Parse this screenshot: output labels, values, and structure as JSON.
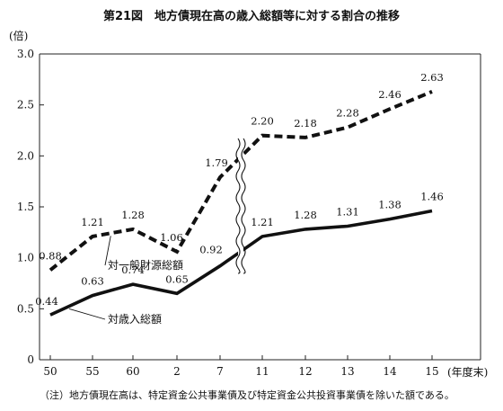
{
  "chart_data": {
    "type": "line",
    "title": "第21図　地方債現在高の歳入総額等に対する割合の推移",
    "ylabel": "(倍)",
    "xlabel": "(年度末)",
    "categories": [
      "50",
      "55",
      "60",
      "2",
      "7",
      "11",
      "12",
      "13",
      "14",
      "15"
    ],
    "ylim": [
      0,
      3.0
    ],
    "yticks": [
      0,
      0.5,
      1.0,
      1.5,
      2.0,
      2.5,
      3.0
    ],
    "ytick_labels": [
      "0",
      "0.5",
      "1.0",
      "1.5",
      "2.0",
      "2.5",
      "3.0"
    ],
    "axis_break": "between 7 and 11",
    "legend": "inline labels with leader lines",
    "series": [
      {
        "name": "対一般財源総額",
        "style": "dashed",
        "values": [
          0.88,
          1.21,
          1.28,
          1.06,
          1.79,
          2.2,
          2.18,
          2.28,
          2.46,
          2.63
        ],
        "labels": [
          "0.88",
          "1.21",
          "1.28",
          "1.06",
          "1.79",
          "2.20",
          "2.18",
          "2.28",
          "2.46",
          "2.63"
        ]
      },
      {
        "name": "対歳入総額",
        "style": "solid",
        "values": [
          0.44,
          0.63,
          0.74,
          0.65,
          0.92,
          1.21,
          1.28,
          1.31,
          1.38,
          1.46
        ],
        "labels": [
          "0.44",
          "0.63",
          "0.74",
          "0.65",
          "0.92",
          "1.21",
          "1.28",
          "1.31",
          "1.38",
          "1.46"
        ]
      }
    ],
    "note": "（注）地方債現在高は、特定資金公共事業債及び特定資金公共投資事業債を除いた額である。",
    "colors": {
      "line": "#111111",
      "axis": "#222222",
      "background": "#ffffff"
    }
  }
}
